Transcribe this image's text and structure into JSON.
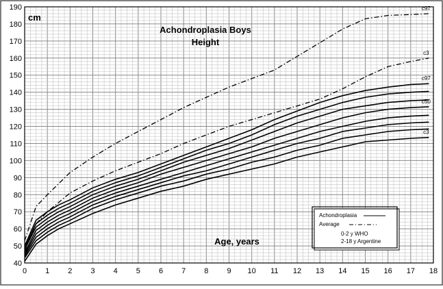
{
  "chart_data": {
    "type": "line",
    "title": "Achondroplasia Boys",
    "subtitle": "Height",
    "ylabel": "cm",
    "xlabel": "Age, years",
    "xlim": [
      0,
      18
    ],
    "ylim": [
      40,
      190
    ],
    "x_ticks": [
      0,
      1,
      2,
      3,
      4,
      5,
      6,
      7,
      8,
      9,
      10,
      11,
      12,
      13,
      14,
      15,
      16,
      17,
      18
    ],
    "y_ticks": [
      40,
      50,
      60,
      70,
      80,
      90,
      100,
      110,
      120,
      130,
      140,
      150,
      160,
      170,
      180,
      190
    ],
    "grid": true,
    "legend": {
      "placement": "bottom-right",
      "entries": [
        "Achondroplasia",
        "Average",
        "0-2 y WHO",
        "2-18 y Argentine"
      ]
    },
    "series": [
      {
        "name": "c97",
        "group": "average",
        "x": [
          0,
          0.5,
          1,
          2,
          3,
          4,
          5,
          6,
          7,
          8,
          9,
          10,
          11,
          12,
          13,
          14,
          15,
          16,
          17,
          17.8
        ],
        "values": [
          53,
          73,
          80,
          93,
          102,
          110,
          117,
          124,
          131,
          137,
          143,
          148,
          153,
          161,
          169,
          177,
          183,
          185,
          185.5,
          186
        ]
      },
      {
        "name": "c3",
        "group": "average",
        "x": [
          0,
          0.5,
          1,
          2,
          3,
          4,
          5,
          6,
          7,
          8,
          9,
          10,
          11,
          12,
          13,
          14,
          15,
          16,
          17,
          17.8
        ],
        "values": [
          47,
          63,
          70,
          81,
          88,
          94,
          99,
          104,
          110,
          115,
          120,
          124,
          128,
          132,
          136,
          142,
          149,
          155,
          158,
          160
        ]
      },
      {
        "name": "c97",
        "group": "achondroplasia",
        "x": [
          0,
          0.5,
          1,
          1.5,
          2,
          3,
          4,
          5,
          6,
          7,
          8,
          9,
          10,
          11,
          12,
          13,
          14,
          15,
          16,
          17,
          17.8
        ],
        "values": [
          50,
          65,
          70,
          74,
          77,
          84,
          89,
          93,
          98,
          103,
          108,
          113,
          118,
          124,
          129,
          134,
          138,
          141,
          143,
          144.5,
          145
        ]
      },
      {
        "name": "",
        "group": "achondroplasia",
        "x": [
          0,
          0.5,
          1,
          1.5,
          2,
          3,
          4,
          5,
          6,
          7,
          8,
          9,
          10,
          11,
          12,
          13,
          14,
          15,
          16,
          17,
          17.8
        ],
        "values": [
          49,
          63,
          68,
          72,
          75,
          82,
          87,
          91,
          96,
          101,
          106,
          110,
          115,
          121,
          126,
          130,
          134,
          137,
          139,
          140,
          140.5
        ]
      },
      {
        "name": "",
        "group": "achondroplasia",
        "x": [
          0,
          0.5,
          1,
          1.5,
          2,
          3,
          4,
          5,
          6,
          7,
          8,
          9,
          10,
          11,
          12,
          13,
          14,
          15,
          16,
          17,
          17.8
        ],
        "values": [
          48,
          61,
          66,
          70,
          73,
          80,
          85,
          89,
          94,
          99,
          103,
          107,
          112,
          117,
          122,
          126,
          130,
          132,
          134,
          135,
          135.5
        ]
      },
      {
        "name": "c50",
        "group": "achondroplasia",
        "x": [
          0,
          0.5,
          1,
          1.5,
          2,
          3,
          4,
          5,
          6,
          7,
          8,
          9,
          10,
          11,
          12,
          13,
          14,
          15,
          16,
          17,
          17.8
        ],
        "values": [
          46,
          59,
          64,
          68,
          71,
          78,
          83,
          87,
          92,
          96,
          100,
          104,
          108,
          113,
          117,
          121,
          125,
          128,
          130,
          131,
          131.5
        ]
      },
      {
        "name": "",
        "group": "achondroplasia",
        "x": [
          0,
          0.5,
          1,
          1.5,
          2,
          3,
          4,
          5,
          6,
          7,
          8,
          9,
          10,
          11,
          12,
          13,
          14,
          15,
          16,
          17,
          17.8
        ],
        "values": [
          45,
          57,
          62,
          66,
          69,
          76,
          81,
          85,
          89,
          93,
          97,
          101,
          105,
          109,
          113,
          117,
          120,
          123,
          125,
          126,
          126.5
        ]
      },
      {
        "name": "",
        "group": "achondroplasia",
        "x": [
          0,
          0.5,
          1,
          1.5,
          2,
          3,
          4,
          5,
          6,
          7,
          8,
          9,
          10,
          11,
          12,
          13,
          14,
          15,
          16,
          17,
          17.8
        ],
        "values": [
          44,
          55,
          60,
          64,
          67,
          74,
          79,
          83,
          87,
          91,
          94,
          98,
          102,
          106,
          110,
          113,
          117,
          119,
          121,
          122,
          122.5
        ]
      },
      {
        "name": "",
        "group": "achondroplasia",
        "x": [
          0,
          0.5,
          1,
          1.5,
          2,
          3,
          4,
          5,
          6,
          7,
          8,
          9,
          10,
          11,
          12,
          13,
          14,
          15,
          16,
          17,
          17.8
        ],
        "values": [
          43,
          53,
          58,
          62,
          65,
          72,
          77,
          81,
          85,
          88,
          92,
          95,
          99,
          102,
          106,
          109,
          113,
          115,
          117,
          118,
          118.5
        ]
      },
      {
        "name": "c3",
        "group": "achondroplasia",
        "x": [
          0,
          0.5,
          1,
          1.5,
          2,
          3,
          4,
          5,
          6,
          7,
          8,
          9,
          10,
          11,
          12,
          13,
          14,
          15,
          16,
          17,
          17.8
        ],
        "values": [
          41,
          51,
          56,
          60,
          63,
          69,
          74,
          78,
          82,
          85,
          89,
          92,
          95,
          98,
          102,
          105,
          108,
          111,
          112,
          113,
          113.5
        ]
      }
    ]
  }
}
